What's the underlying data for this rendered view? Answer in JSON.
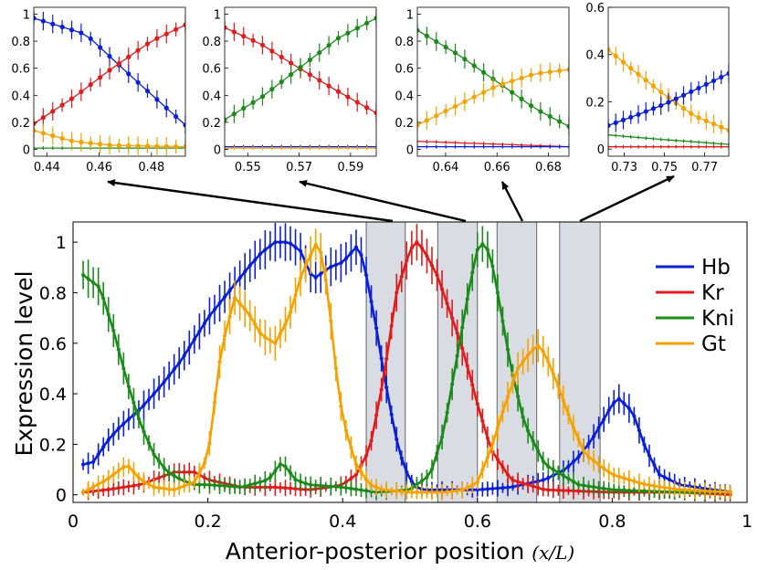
{
  "chart_data": {
    "type": "line",
    "main": {
      "xlabel": "Anterior-posterior position",
      "xlabel_math": "(x/L)",
      "ylabel": "Expression  level",
      "xlim": [
        0,
        1
      ],
      "ylim": [
        -0.03,
        1.08
      ],
      "xticks": [
        "0",
        "0.2",
        "0.4",
        "0.6",
        "0.8",
        "1"
      ],
      "yticks": [
        "0",
        "0.2",
        "0.4",
        "0.6",
        "0.8",
        "1"
      ],
      "legend": [
        "Hb",
        "Kr",
        "Kni",
        "Gt"
      ],
      "legend_position": "top-right",
      "shaded_windows": [
        [
          0.435,
          0.493
        ],
        [
          0.541,
          0.6
        ],
        [
          0.629,
          0.688
        ],
        [
          0.722,
          0.782
        ]
      ],
      "series": [
        {
          "name": "Hb",
          "color": "#0a1fd6",
          "x": [
            0.015,
            0.03,
            0.05,
            0.07,
            0.1,
            0.13,
            0.16,
            0.2,
            0.23,
            0.26,
            0.28,
            0.3,
            0.32,
            0.34,
            0.35,
            0.36,
            0.38,
            0.4,
            0.42,
            0.43,
            0.44,
            0.45,
            0.46,
            0.47,
            0.48,
            0.49,
            0.5,
            0.51,
            0.52,
            0.55,
            0.6,
            0.65,
            0.7,
            0.73,
            0.75,
            0.77,
            0.79,
            0.8,
            0.81,
            0.83,
            0.85,
            0.87,
            0.9,
            0.95,
            0.98
          ],
          "y": [
            0.12,
            0.13,
            0.21,
            0.27,
            0.34,
            0.43,
            0.53,
            0.7,
            0.8,
            0.9,
            0.96,
            1.0,
            1.0,
            0.96,
            0.88,
            0.86,
            0.9,
            0.92,
            0.98,
            0.94,
            0.8,
            0.66,
            0.5,
            0.35,
            0.22,
            0.12,
            0.06,
            0.03,
            0.02,
            0.02,
            0.02,
            0.03,
            0.06,
            0.1,
            0.15,
            0.22,
            0.31,
            0.36,
            0.38,
            0.33,
            0.18,
            0.08,
            0.04,
            0.02,
            0.01
          ]
        },
        {
          "name": "Kr",
          "color": "#e01b1b",
          "x": [
            0.015,
            0.05,
            0.1,
            0.15,
            0.18,
            0.2,
            0.25,
            0.3,
            0.35,
            0.38,
            0.4,
            0.42,
            0.44,
            0.46,
            0.48,
            0.5,
            0.51,
            0.52,
            0.54,
            0.56,
            0.58,
            0.6,
            0.62,
            0.65,
            0.7,
            0.8,
            0.9,
            0.98
          ],
          "y": [
            0.01,
            0.02,
            0.04,
            0.09,
            0.09,
            0.06,
            0.03,
            0.03,
            0.02,
            0.03,
            0.04,
            0.08,
            0.18,
            0.45,
            0.8,
            0.97,
            1.0,
            0.97,
            0.87,
            0.72,
            0.56,
            0.36,
            0.18,
            0.06,
            0.02,
            0.01,
            0.01,
            0.0
          ]
        },
        {
          "name": "Kni",
          "color": "#1a8a1a",
          "x": [
            0.015,
            0.025,
            0.04,
            0.06,
            0.08,
            0.1,
            0.12,
            0.14,
            0.16,
            0.18,
            0.2,
            0.25,
            0.29,
            0.31,
            0.33,
            0.35,
            0.4,
            0.45,
            0.5,
            0.53,
            0.55,
            0.57,
            0.59,
            0.6,
            0.61,
            0.62,
            0.63,
            0.65,
            0.67,
            0.7,
            0.75,
            0.8,
            0.9,
            0.98
          ],
          "y": [
            0.87,
            0.85,
            0.82,
            0.65,
            0.45,
            0.28,
            0.16,
            0.09,
            0.06,
            0.04,
            0.04,
            0.03,
            0.06,
            0.13,
            0.06,
            0.04,
            0.03,
            0.01,
            0.02,
            0.08,
            0.25,
            0.55,
            0.85,
            0.97,
            1.0,
            0.94,
            0.8,
            0.5,
            0.28,
            0.12,
            0.04,
            0.02,
            0.01,
            0.01
          ]
        },
        {
          "name": "Gt",
          "color": "#f5a200",
          "x": [
            0.015,
            0.05,
            0.08,
            0.1,
            0.12,
            0.15,
            0.18,
            0.2,
            0.22,
            0.24,
            0.26,
            0.28,
            0.3,
            0.32,
            0.34,
            0.36,
            0.37,
            0.38,
            0.39,
            0.4,
            0.42,
            0.44,
            0.46,
            0.5,
            0.55,
            0.58,
            0.6,
            0.62,
            0.64,
            0.66,
            0.68,
            0.69,
            0.7,
            0.72,
            0.74,
            0.76,
            0.8,
            0.85,
            0.9,
            0.98
          ],
          "y": [
            0.01,
            0.06,
            0.12,
            0.06,
            0.03,
            0.02,
            0.05,
            0.15,
            0.58,
            0.78,
            0.72,
            0.63,
            0.6,
            0.7,
            0.88,
            0.99,
            0.95,
            0.75,
            0.5,
            0.3,
            0.12,
            0.04,
            0.02,
            0.01,
            0.01,
            0.02,
            0.05,
            0.18,
            0.35,
            0.5,
            0.57,
            0.59,
            0.56,
            0.43,
            0.28,
            0.16,
            0.08,
            0.04,
            0.02,
            0.01
          ]
        }
      ]
    },
    "insets": [
      {
        "xlim": [
          0.435,
          0.493
        ],
        "ylim": [
          -0.05,
          1.05
        ],
        "xticks": [
          "0.44",
          "0.46",
          "0.48"
        ],
        "xtick_vals": [
          0.44,
          0.46,
          0.48
        ],
        "yticks": [
          "0",
          "0.2",
          "0.4",
          "0.6",
          "0.8",
          "1"
        ],
        "ytick_vals": [
          0,
          0.2,
          0.4,
          0.6,
          0.8,
          1
        ],
        "series": [
          {
            "name": "Hb",
            "color": "#0a1fd6",
            "x": [
              0.435,
              0.455,
              0.47,
              0.493
            ],
            "y": [
              0.97,
              0.85,
              0.58,
              0.18
            ]
          },
          {
            "name": "Kr",
            "color": "#e01b1b",
            "x": [
              0.435,
              0.45,
              0.465,
              0.48,
              0.493
            ],
            "y": [
              0.19,
              0.38,
              0.6,
              0.8,
              0.92
            ]
          },
          {
            "name": "Kni",
            "color": "#1a8a1a",
            "x": [
              0.435,
              0.493
            ],
            "y": [
              0.01,
              0.01
            ]
          },
          {
            "name": "Gt",
            "color": "#f5a200",
            "x": [
              0.435,
              0.45,
              0.465,
              0.493
            ],
            "y": [
              0.14,
              0.06,
              0.03,
              0.02
            ]
          }
        ]
      },
      {
        "xlim": [
          0.541,
          0.6
        ],
        "ylim": [
          -0.05,
          1.05
        ],
        "xticks": [
          "0.55",
          "0.57",
          "0.59"
        ],
        "xtick_vals": [
          0.55,
          0.57,
          0.59
        ],
        "yticks": [
          "0",
          "0.2",
          "0.4",
          "0.6",
          "0.8",
          "1"
        ],
        "ytick_vals": [
          0,
          0.2,
          0.4,
          0.6,
          0.8,
          1
        ],
        "series": [
          {
            "name": "Kr",
            "color": "#e01b1b",
            "x": [
              0.541,
              0.555,
              0.57,
              0.585,
              0.6
            ],
            "y": [
              0.9,
              0.78,
              0.6,
              0.43,
              0.27
            ]
          },
          {
            "name": "Kni",
            "color": "#1a8a1a",
            "x": [
              0.541,
              0.555,
              0.57,
              0.585,
              0.6
            ],
            "y": [
              0.22,
              0.38,
              0.6,
              0.82,
              0.97
            ]
          },
          {
            "name": "Hb",
            "color": "#0a1fd6",
            "x": [
              0.541,
              0.6
            ],
            "y": [
              0.02,
              0.02
            ]
          },
          {
            "name": "Gt",
            "color": "#f5a200",
            "x": [
              0.541,
              0.6
            ],
            "y": [
              0.01,
              0.01
            ]
          }
        ]
      },
      {
        "xlim": [
          0.629,
          0.688
        ],
        "ylim": [
          -0.05,
          1.05
        ],
        "xticks": [
          "0.64",
          "0.66",
          "0.68"
        ],
        "xtick_vals": [
          0.64,
          0.66,
          0.68
        ],
        "yticks": [
          "0",
          "0.2",
          "0.4",
          "0.6",
          "0.8",
          "1"
        ],
        "ytick_vals": [
          0,
          0.2,
          0.4,
          0.6,
          0.8,
          1
        ],
        "series": [
          {
            "name": "Kni",
            "color": "#1a8a1a",
            "x": [
              0.629,
              0.645,
              0.66,
              0.675,
              0.688
            ],
            "y": [
              0.88,
              0.7,
              0.5,
              0.3,
              0.17
            ]
          },
          {
            "name": "Gt",
            "color": "#f5a200",
            "x": [
              0.629,
              0.645,
              0.66,
              0.675,
              0.688
            ],
            "y": [
              0.18,
              0.33,
              0.47,
              0.56,
              0.59
            ]
          },
          {
            "name": "Kr",
            "color": "#e01b1b",
            "x": [
              0.629,
              0.688
            ],
            "y": [
              0.06,
              0.02
            ]
          },
          {
            "name": "Hb",
            "color": "#0a1fd6",
            "x": [
              0.629,
              0.688
            ],
            "y": [
              0.02,
              0.02
            ]
          }
        ]
      },
      {
        "xlim": [
          0.722,
          0.782
        ],
        "ylim": [
          -0.03,
          0.6
        ],
        "xticks": [
          "0.73",
          "0.75",
          "0.77"
        ],
        "xtick_vals": [
          0.73,
          0.75,
          0.77
        ],
        "yticks": [
          "0",
          "0.2",
          "0.4",
          "0.6"
        ],
        "ytick_vals": [
          0,
          0.2,
          0.4,
          0.6
        ],
        "series": [
          {
            "name": "Gt",
            "color": "#f5a200",
            "x": [
              0.722,
              0.735,
              0.75,
              0.765,
              0.782
            ],
            "y": [
              0.42,
              0.33,
              0.23,
              0.14,
              0.08
            ]
          },
          {
            "name": "Hb",
            "color": "#0a1fd6",
            "x": [
              0.722,
              0.735,
              0.75,
              0.765,
              0.782
            ],
            "y": [
              0.1,
              0.14,
              0.19,
              0.25,
              0.32
            ]
          },
          {
            "name": "Kni",
            "color": "#1a8a1a",
            "x": [
              0.722,
              0.75,
              0.782
            ],
            "y": [
              0.06,
              0.04,
              0.02
            ]
          },
          {
            "name": "Kr",
            "color": "#e01b1b",
            "x": [
              0.722,
              0.782
            ],
            "y": [
              0.01,
              0.01
            ]
          }
        ]
      }
    ]
  }
}
